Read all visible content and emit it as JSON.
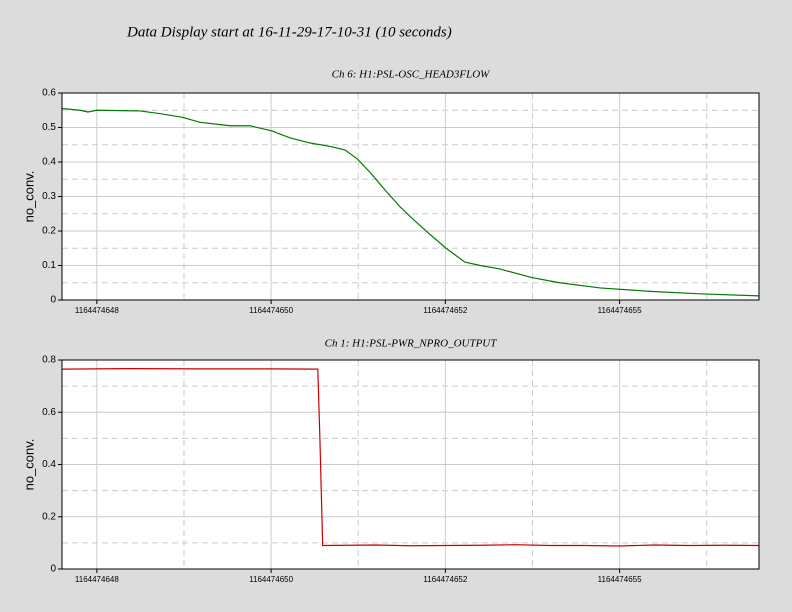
{
  "title": "Data Display start at 16-11-29-17-10-31 (10 seconds)",
  "chart_data": [
    {
      "type": "line",
      "title": "Ch 6: H1:PSL-OSC_HEAD3FLOW",
      "y_label": "no_conv.",
      "color": "#007a00",
      "x": [
        1164474647.5,
        1164474647.76,
        1164474647.87,
        1164474648.0,
        1164474648.62,
        1164474648.91,
        1164474649.22,
        1164474649.48,
        1164474649.91,
        1164474650.2,
        1164474650.51,
        1164474650.77,
        1164474651.06,
        1164474651.35,
        1164474651.56,
        1164474651.73,
        1164474651.92,
        1164474652.13,
        1164474652.35,
        1164474652.56,
        1164474652.78,
        1164474653.01,
        1164474653.28,
        1164474653.5,
        1164474653.78,
        1164474654.24,
        1164474654.64,
        1164474655.22,
        1164474655.94,
        1164474656.65,
        1164474657.5
      ],
      "values": [
        0.555,
        0.55,
        0.545,
        0.55,
        0.548,
        0.54,
        0.53,
        0.515,
        0.505,
        0.505,
        0.49,
        0.47,
        0.455,
        0.445,
        0.435,
        0.41,
        0.37,
        0.32,
        0.27,
        0.23,
        0.19,
        0.15,
        0.11,
        0.1,
        0.09,
        0.065,
        0.05,
        0.035,
        0.025,
        0.018,
        0.012
      ],
      "xlim": [
        1164474647.5,
        1164474657.5
      ],
      "xticks": [
        {
          "value": 1164474648,
          "label": "1164474648"
        },
        {
          "value": 1164474650.5,
          "label": "1164474650"
        },
        {
          "value": 1164474653,
          "label": "1164474652"
        },
        {
          "value": 1164474655.5,
          "label": "1164474655"
        }
      ],
      "xminor": [
        1164474649.25,
        1164474651.75,
        1164474654.25,
        1164474656.75
      ],
      "ylim": [
        0,
        0.6
      ],
      "yticks": [
        0,
        0.1,
        0.2,
        0.3,
        0.4,
        0.5,
        0.6
      ],
      "yminor": [
        0.05,
        0.15,
        0.25,
        0.35,
        0.45,
        0.55
      ],
      "grid": true
    },
    {
      "type": "line",
      "title": "Ch 1: H1:PSL-PWR_NPRO_OUTPUT",
      "y_label": "no_conv.",
      "color": "#cc0000",
      "x": [
        1164474647.5,
        1164474648.5,
        1164474649.5,
        1164474650.5,
        1164474651.17,
        1164474651.2,
        1164474651.24,
        1164474652.0,
        1164474652.5,
        1164474653.0,
        1164474653.5,
        1164474654.0,
        1164474654.5,
        1164474655.0,
        1164474655.5,
        1164474656.0,
        1164474656.5,
        1164474657.0,
        1164474657.5
      ],
      "values": [
        0.765,
        0.767,
        0.766,
        0.766,
        0.765,
        0.5,
        0.09,
        0.092,
        0.089,
        0.09,
        0.091,
        0.093,
        0.09,
        0.09,
        0.088,
        0.092,
        0.09,
        0.091,
        0.09
      ],
      "xlim": [
        1164474647.5,
        1164474657.5
      ],
      "xticks": [
        {
          "value": 1164474648,
          "label": "1164474648"
        },
        {
          "value": 1164474650.5,
          "label": "1164474650"
        },
        {
          "value": 1164474653,
          "label": "1164474652"
        },
        {
          "value": 1164474655.5,
          "label": "1164474655"
        }
      ],
      "xminor": [
        1164474649.25,
        1164474651.75,
        1164474654.25,
        1164474656.75
      ],
      "ylim": [
        0,
        0.8
      ],
      "yticks": [
        0,
        0.2,
        0.4,
        0.6,
        0.8
      ],
      "yminor": [
        0.1,
        0.3,
        0.5,
        0.7
      ],
      "grid": true
    }
  ]
}
